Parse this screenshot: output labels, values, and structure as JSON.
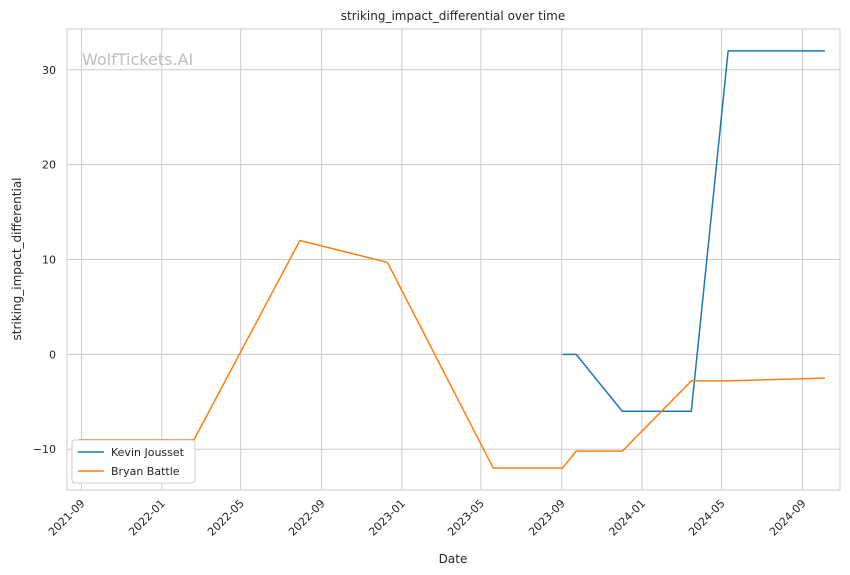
{
  "watermark": "WolfTickets.AI",
  "colors": {
    "Kevin Jousset": "#1f77b4",
    "Bryan Battle": "#ff7f0e"
  },
  "chart_data": {
    "type": "line",
    "title": "striking_impact_differential over time",
    "xlabel": "Date",
    "ylabel": "striking_impact_differential",
    "x_type": "date",
    "xlim": [
      "2021-08-10",
      "2024-10-28"
    ],
    "ylim": [
      -14.3,
      34.3
    ],
    "xticks": [
      "2021-09",
      "2022-01",
      "2022-05",
      "2022-09",
      "2023-01",
      "2023-05",
      "2023-09",
      "2024-01",
      "2024-05",
      "2024-09"
    ],
    "yticks": [
      -10,
      0,
      10,
      20,
      30
    ],
    "grid": true,
    "legend_position": "lower-left",
    "series": [
      {
        "name": "Kevin Jousset",
        "points": [
          [
            "2023-09-02",
            0
          ],
          [
            "2023-09-23",
            0
          ],
          [
            "2023-12-02",
            -6
          ],
          [
            "2024-03-16",
            -6
          ],
          [
            "2024-05-11",
            32
          ],
          [
            "2024-10-05",
            32
          ]
        ]
      },
      {
        "name": "Bryan Battle",
        "points": [
          [
            "2021-08-28",
            -9
          ],
          [
            "2022-02-19",
            -9
          ],
          [
            "2022-07-30",
            12
          ],
          [
            "2022-12-10",
            9.7
          ],
          [
            "2023-05-20",
            -12
          ],
          [
            "2023-09-02",
            -12
          ],
          [
            "2023-09-23",
            -10.2
          ],
          [
            "2023-12-02",
            -10.2
          ],
          [
            "2024-03-16",
            -2.8
          ],
          [
            "2024-05-11",
            -2.8
          ],
          [
            "2024-10-05",
            -2.5
          ]
        ]
      }
    ]
  }
}
